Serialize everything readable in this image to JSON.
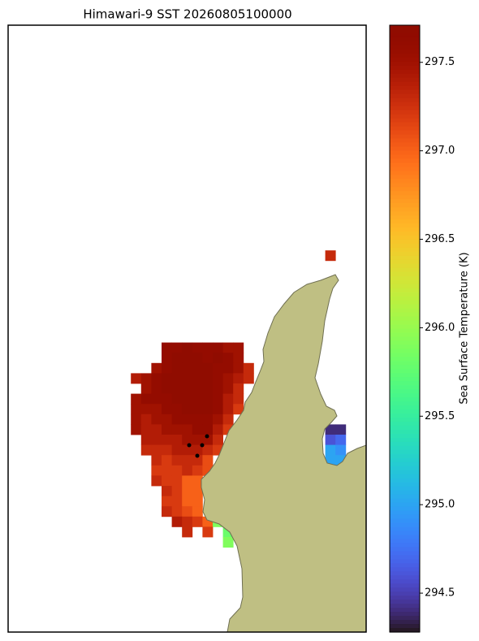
{
  "chart_data": {
    "type": "heatmap",
    "title": "Himawari-9 SST 20260805100000",
    "colorbar_label": "Sea Surface Temperature (K)",
    "colormap": "turbo",
    "clim": [
      294.28,
      297.71
    ],
    "cticks": [
      294.5,
      {
        "value": 295,
        "label": "295.0"
      },
      295.5,
      {
        "value": 296,
        "label": "296.0"
      },
      296.5,
      {
        "value": 297,
        "label": "297.0"
      },
      297.5
    ],
    "grid": [
      [
        null,
        null,
        null,
        null,
        null,
        null,
        null,
        null,
        null,
        null,
        null,
        null,
        null,
        null,
        null,
        null,
        null,
        null,
        null,
        297.3,
        null
      ],
      [
        null,
        null,
        null,
        null,
        null,
        null,
        null,
        null,
        null,
        null,
        null,
        null,
        null,
        null,
        null,
        null,
        null,
        null,
        null,
        null,
        null
      ],
      [
        null,
        null,
        null,
        null,
        null,
        null,
        null,
        null,
        null,
        null,
        null,
        null,
        null,
        null,
        null,
        null,
        null,
        null,
        null,
        null,
        null
      ],
      [
        null,
        null,
        null,
        null,
        null,
        null,
        null,
        null,
        null,
        null,
        null,
        null,
        null,
        null,
        null,
        null,
        null,
        null,
        null,
        null,
        null
      ],
      [
        null,
        null,
        null,
        null,
        null,
        null,
        null,
        null,
        null,
        null,
        null,
        null,
        null,
        null,
        null,
        null,
        null,
        null,
        null,
        null,
        null
      ],
      [
        null,
        null,
        null,
        null,
        null,
        null,
        null,
        null,
        null,
        null,
        null,
        null,
        null,
        null,
        null,
        null,
        null,
        null,
        null,
        null,
        null
      ],
      [
        null,
        null,
        null,
        null,
        null,
        null,
        null,
        null,
        null,
        null,
        null,
        null,
        null,
        null,
        null,
        null,
        null,
        null,
        null,
        null,
        null
      ],
      [
        null,
        null,
        null,
        null,
        null,
        null,
        null,
        null,
        null,
        null,
        null,
        null,
        null,
        null,
        null,
        null,
        null,
        null,
        null,
        null,
        null
      ],
      [
        null,
        null,
        null,
        null,
        null,
        null,
        null,
        null,
        null,
        null,
        null,
        null,
        null,
        null,
        null,
        null,
        null,
        null,
        null,
        null,
        null
      ],
      [
        null,
        null,
        null,
        297.6,
        297.6,
        297.7,
        297.6,
        297.6,
        297.6,
        297.5,
        297.5,
        null,
        null,
        null,
        null,
        null,
        null,
        null,
        null,
        null,
        null
      ],
      [
        null,
        null,
        null,
        297.6,
        297.7,
        297.7,
        297.7,
        297.6,
        297.7,
        297.6,
        297.5,
        null,
        null,
        null,
        null,
        null,
        null,
        null,
        null,
        null,
        null
      ],
      [
        null,
        null,
        297.5,
        297.6,
        297.7,
        297.7,
        297.7,
        297.7,
        297.6,
        297.6,
        297.5,
        297.3,
        null,
        null,
        null,
        null,
        null,
        null,
        null,
        null,
        null
      ],
      [
        297.4,
        297.5,
        297.6,
        297.7,
        297.7,
        297.7,
        297.7,
        297.7,
        297.6,
        297.5,
        297.4,
        297.3,
        null,
        null,
        null,
        null,
        null,
        null,
        null,
        null,
        null
      ],
      [
        null,
        297.5,
        297.6,
        297.7,
        297.7,
        297.7,
        297.7,
        297.7,
        297.6,
        297.5,
        297.3,
        null,
        null,
        null,
        null,
        null,
        null,
        null,
        null,
        null,
        null
      ],
      [
        297.5,
        297.6,
        297.6,
        297.6,
        297.7,
        297.7,
        297.7,
        297.7,
        297.6,
        297.4,
        297.3,
        null,
        null,
        null,
        null,
        null,
        null,
        null,
        null,
        null,
        null
      ],
      [
        297.5,
        297.5,
        297.5,
        297.6,
        297.6,
        297.7,
        297.7,
        297.7,
        297.6,
        297.4,
        297.2,
        null,
        null,
        null,
        null,
        null,
        null,
        null,
        null,
        null,
        null
      ],
      [
        297.5,
        297.4,
        297.5,
        297.5,
        297.6,
        297.6,
        297.6,
        297.6,
        297.5,
        297.3,
        null,
        null,
        null,
        null,
        null,
        null,
        null,
        null,
        null,
        null,
        null
      ],
      [
        297.5,
        297.4,
        297.4,
        297.5,
        297.5,
        297.5,
        297.6,
        297.6,
        297.4,
        297.2,
        null,
        null,
        null,
        null,
        null,
        null,
        null,
        null,
        null,
        294.4,
        294.4
      ],
      [
        null,
        297.4,
        297.4,
        297.4,
        297.4,
        297.5,
        297.5,
        297.5,
        297.3,
        null,
        null,
        null,
        null,
        null,
        null,
        null,
        null,
        null,
        null,
        294.6,
        294.7
      ],
      [
        null,
        297.3,
        297.3,
        297.3,
        297.4,
        297.4,
        297.4,
        297.3,
        297.2,
        null,
        null,
        null,
        null,
        null,
        null,
        null,
        null,
        null,
        null,
        295.0,
        294.9
      ],
      [
        null,
        null,
        297.3,
        297.2,
        297.3,
        297.3,
        297.3,
        297.1,
        null,
        null,
        null,
        null,
        null,
        null,
        null,
        null,
        null,
        null,
        null,
        295.0,
        295.0
      ],
      [
        null,
        null,
        297.2,
        297.2,
        297.2,
        297.3,
        297.2,
        297.1,
        null,
        null,
        null,
        null,
        null,
        null,
        null,
        null,
        null,
        null,
        null,
        null,
        null
      ],
      [
        null,
        null,
        297.3,
        297.2,
        297.2,
        297.0,
        297.0,
        null,
        null,
        null,
        null,
        null,
        null,
        null,
        null,
        null,
        null,
        null,
        null,
        null,
        null
      ],
      [
        null,
        null,
        null,
        297.3,
        297.2,
        297.0,
        297.0,
        null,
        null,
        null,
        null,
        null,
        null,
        null,
        null,
        null,
        null,
        null,
        null,
        null,
        null
      ],
      [
        null,
        null,
        null,
        297.2,
        297.2,
        297.0,
        297.0,
        null,
        null,
        null,
        null,
        null,
        null,
        null,
        null,
        null,
        null,
        null,
        null,
        null,
        null
      ],
      [
        null,
        null,
        null,
        297.3,
        297.2,
        297.1,
        297.0,
        null,
        null,
        null,
        null,
        null,
        null,
        null,
        null,
        null,
        null,
        null,
        null,
        null,
        null
      ],
      [
        null,
        null,
        null,
        null,
        297.4,
        297.3,
        297.2,
        297.0,
        295.9,
        295.8,
        null,
        null,
        null,
        null,
        null,
        null,
        null,
        null,
        null,
        null,
        null
      ],
      [
        null,
        null,
        null,
        null,
        null,
        297.3,
        null,
        297.2,
        null,
        295.8,
        null,
        null,
        null,
        null,
        null,
        null,
        null,
        null,
        null,
        null,
        null
      ],
      [
        null,
        null,
        null,
        null,
        null,
        null,
        null,
        null,
        null,
        295.9,
        null,
        null,
        null,
        null,
        null,
        null,
        null,
        null,
        null,
        null,
        null
      ]
    ]
  }
}
